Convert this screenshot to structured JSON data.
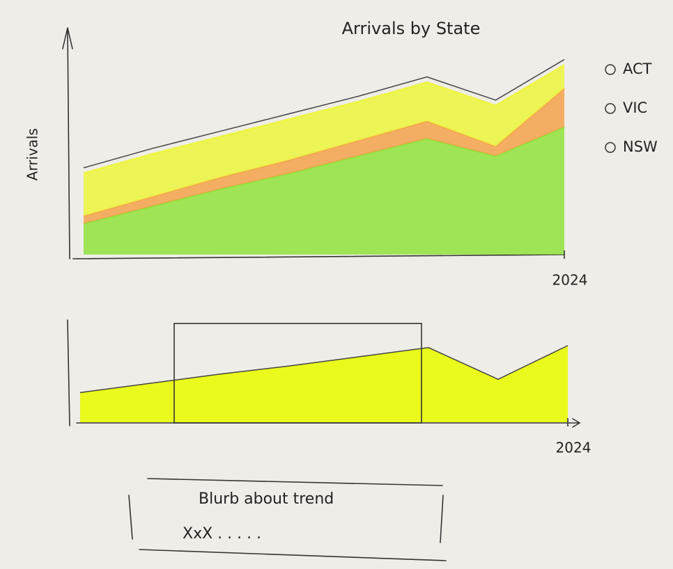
{
  "chart_data": [
    {
      "type": "stacked-area",
      "title": "Arrivals by State",
      "y_label": "Arrivals",
      "categories": [
        null,
        null,
        null,
        null,
        null,
        null,
        null,
        "2024"
      ],
      "ylim": [
        0,
        100
      ],
      "legend": "right",
      "series": [
        {
          "name": "NSW",
          "color": "#8fe23c",
          "values": [
            16,
            25,
            34,
            42,
            51,
            60,
            51,
            66
          ]
        },
        {
          "name": "VIC",
          "color": "#f4a24c",
          "values": [
            4,
            5,
            6,
            7,
            8,
            9,
            5,
            20
          ]
        },
        {
          "name": "ACT",
          "color": "#ecf53c",
          "values": [
            22,
            22,
            21,
            21,
            20,
            20,
            21,
            12
          ]
        }
      ]
    },
    {
      "type": "area",
      "categories": [
        null,
        null,
        null,
        null,
        null,
        null,
        null,
        "2024"
      ],
      "ylim": [
        0,
        100
      ],
      "color": "#e9fa1c",
      "values": [
        29,
        38,
        47,
        55,
        64,
        73,
        42,
        75
      ]
    }
  ],
  "blurb": {
    "title": "Blurb about trend",
    "text": "XxX . . . . ."
  }
}
